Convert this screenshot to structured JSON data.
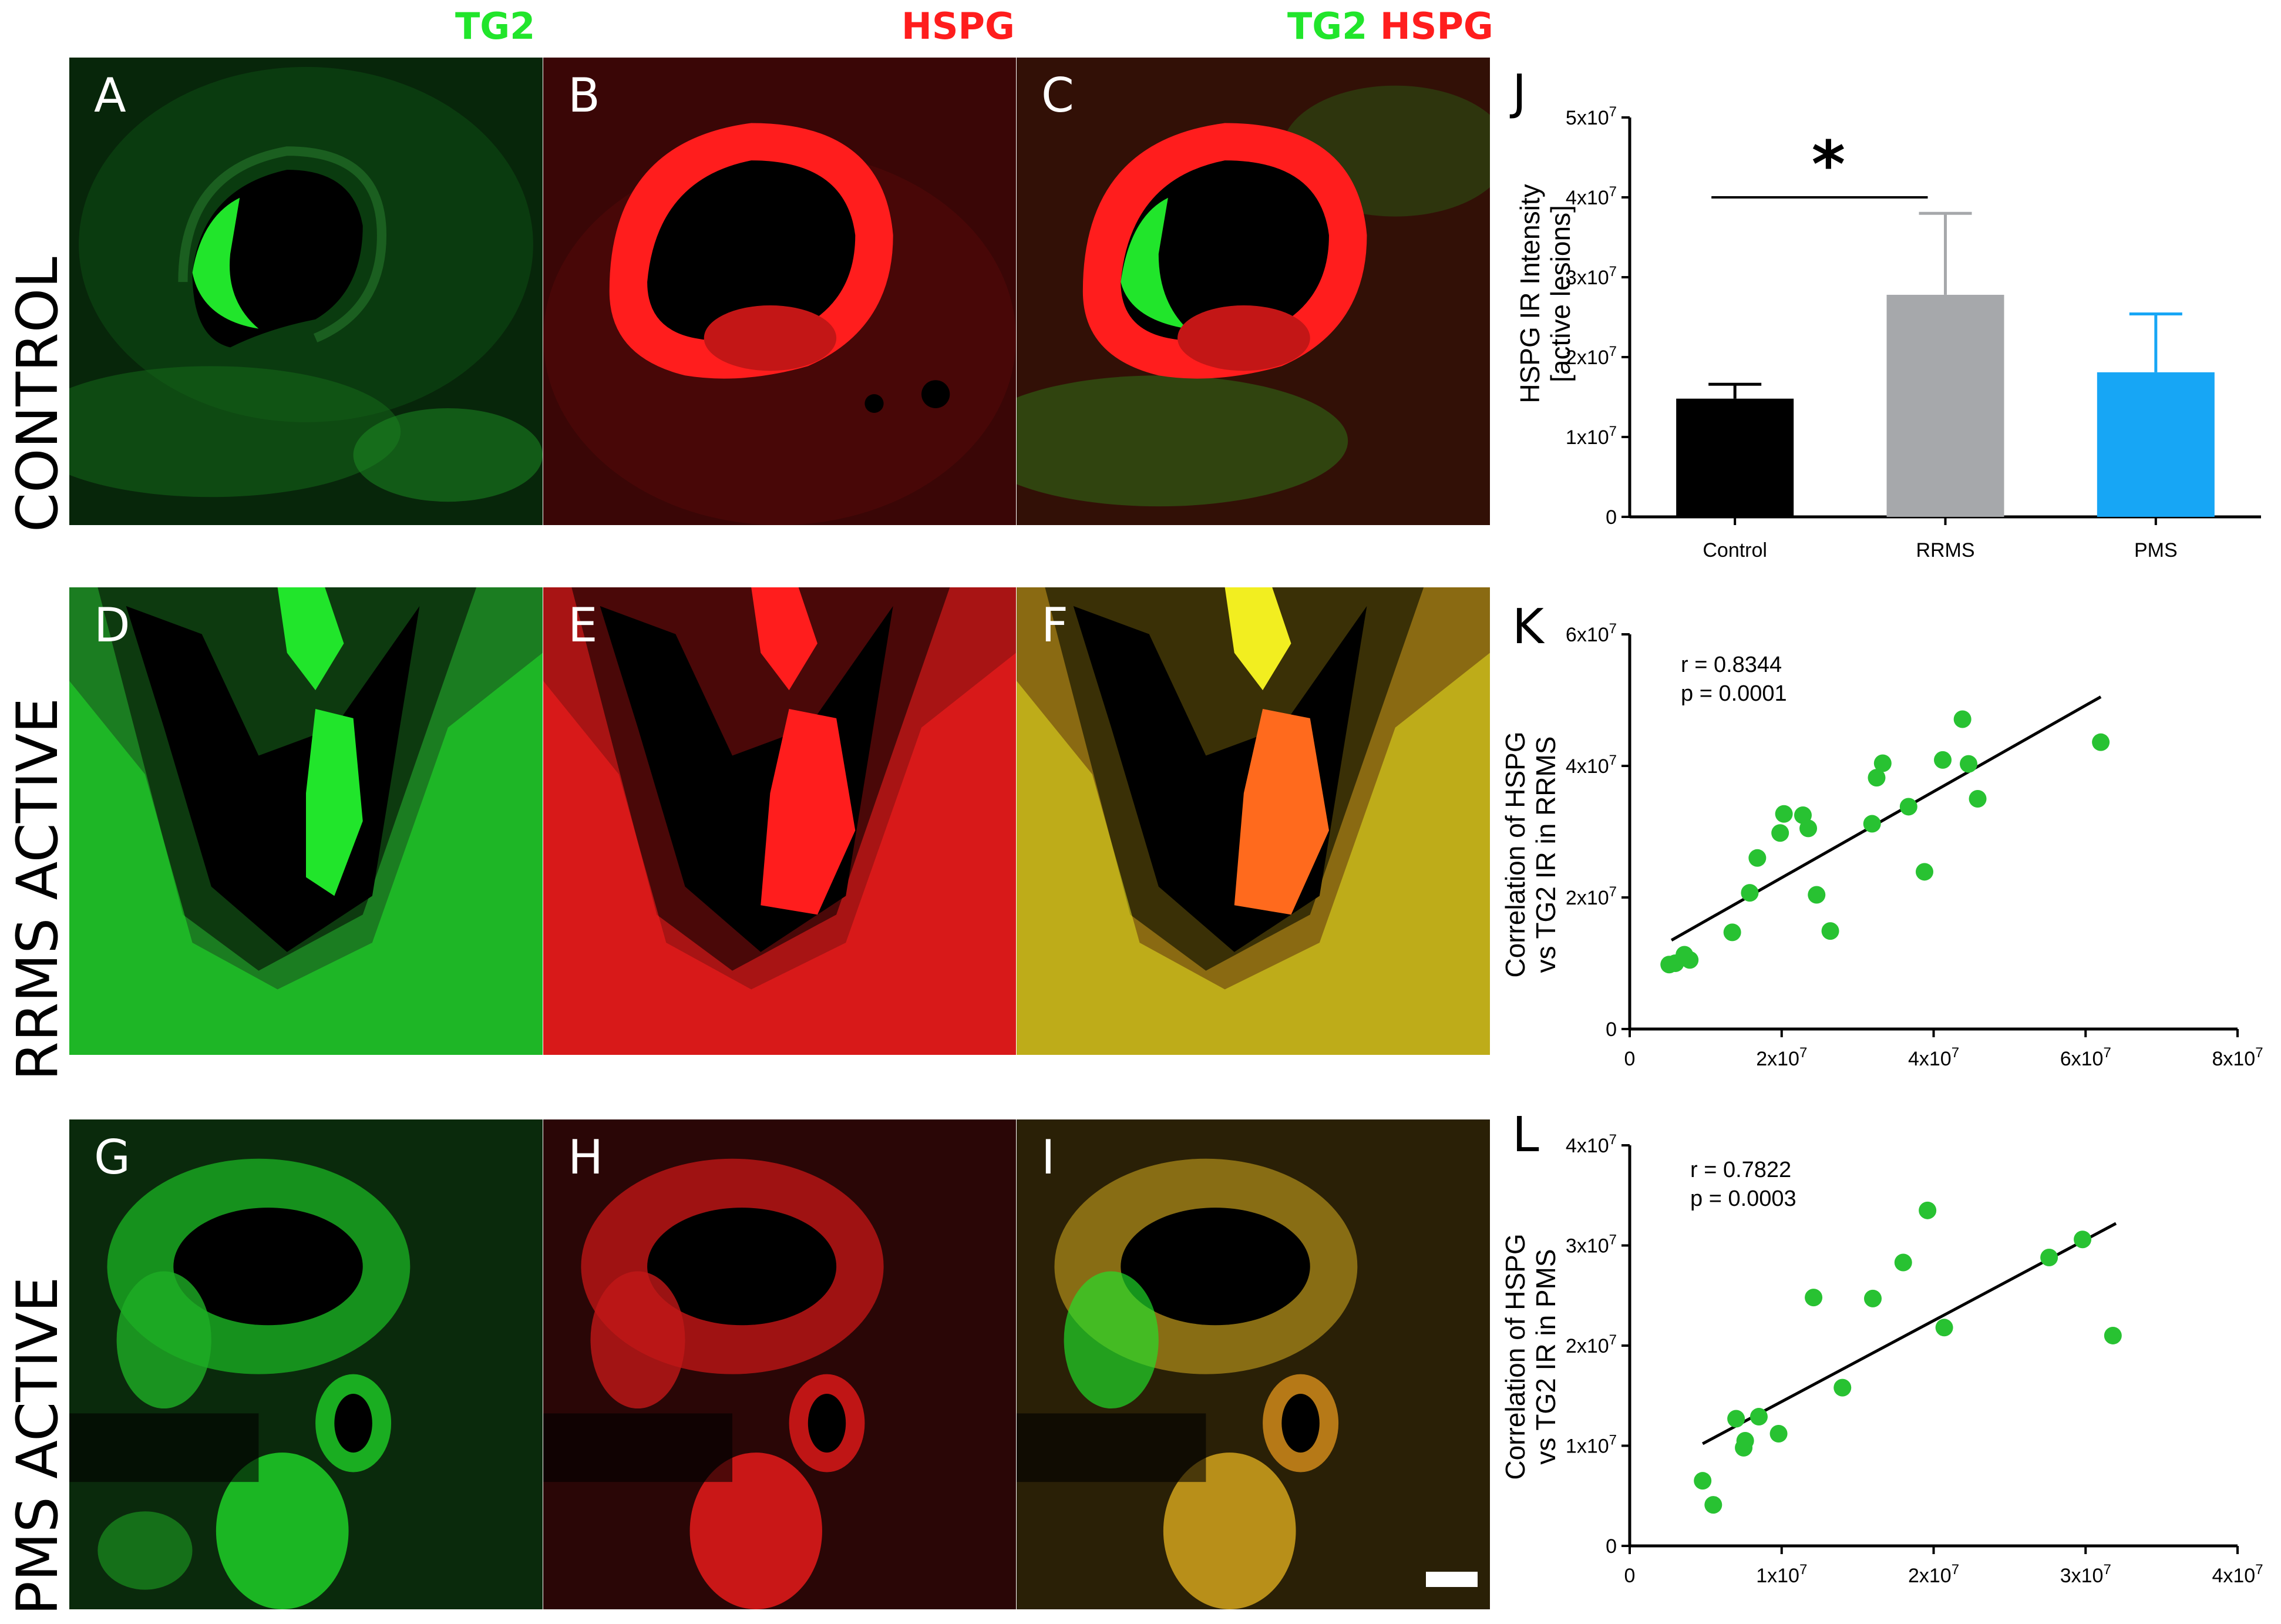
{
  "column_titles": {
    "a": {
      "parts": [
        {
          "text": "TG2",
          "color": "#21e52b"
        }
      ]
    },
    "b": {
      "parts": [
        {
          "text": "HSPG",
          "color": "#ff1d1d"
        }
      ]
    },
    "c": {
      "parts": [
        {
          "text": "TG2",
          "color": "#21e52b"
        },
        {
          "text": "HSPG",
          "color": "#ff1d1d"
        }
      ]
    }
  },
  "row_titles": [
    "CONTROL",
    "RRMS ACTIVE",
    "PMS ACTIVE"
  ],
  "panels": [
    {
      "letter": "A",
      "channel": "green"
    },
    {
      "letter": "B",
      "channel": "red"
    },
    {
      "letter": "C",
      "channel": "merge"
    },
    {
      "letter": "D",
      "channel": "green"
    },
    {
      "letter": "E",
      "channel": "red"
    },
    {
      "letter": "F",
      "channel": "merge"
    },
    {
      "letter": "G",
      "channel": "green"
    },
    {
      "letter": "H",
      "channel": "red"
    },
    {
      "letter": "I",
      "channel": "merge"
    }
  ],
  "colors": {
    "green": "#21e52b",
    "red": "#ff1d1d",
    "yellow": "#f2ee20",
    "control_bar": "#000000",
    "rrms_bar": "#a6a8ab",
    "pms_bar": "#17a6f5",
    "scatter_point": "#28c232"
  },
  "charts": {
    "J": {
      "letter": "J",
      "ylabel_line1": "HSPG IR Intensity",
      "ylabel_line2": "[active lesions]",
      "significance": "*"
    },
    "K": {
      "letter": "K",
      "ylabel_line1": "Correlation of HSPG",
      "ylabel_line2": "vs TG2 IR in RRMS",
      "r_text": "r = 0.8344",
      "p_text": "p = 0.0001"
    },
    "L": {
      "letter": "L",
      "ylabel_line1": "Correlation of HSPG",
      "ylabel_line2": "vs TG2 IR in PMS",
      "r_text": "r = 0.7822",
      "p_text": "p = 0.0003"
    }
  },
  "chart_data": [
    {
      "panel": "J",
      "type": "bar",
      "categories": [
        "Control",
        "RRMS",
        "PMS"
      ],
      "values": [
        14800000,
        27800000,
        18100000
      ],
      "errors": [
        1800000,
        10200000,
        7300000
      ],
      "bar_colors": [
        "#000000",
        "#a6a8ab",
        "#17a6f5"
      ],
      "ylim": [
        0,
        50000000
      ],
      "yticks": [
        0,
        10000000,
        20000000,
        30000000,
        40000000,
        50000000
      ],
      "ytick_labels": [
        {
          "base": "0",
          "exp": ""
        },
        {
          "base": "1x10",
          "exp": "7"
        },
        {
          "base": "2x10",
          "exp": "7"
        },
        {
          "base": "3x10",
          "exp": "7"
        },
        {
          "base": "4x10",
          "exp": "7"
        },
        {
          "base": "5x10",
          "exp": "7"
        }
      ],
      "significance": {
        "from": "Control",
        "to": "RRMS",
        "y": 40000000,
        "label": "*"
      }
    },
    {
      "panel": "K",
      "type": "scatter",
      "xlim": [
        0,
        80000000
      ],
      "ylim": [
        0,
        60000000
      ],
      "xticks": [
        0,
        20000000,
        40000000,
        60000000,
        80000000
      ],
      "xtick_labels": [
        {
          "base": "0",
          "exp": ""
        },
        {
          "base": "2x10",
          "exp": "7"
        },
        {
          "base": "4x10",
          "exp": "7"
        },
        {
          "base": "6x10",
          "exp": "7"
        },
        {
          "base": "8x10",
          "exp": "7"
        }
      ],
      "yticks": [
        0,
        20000000,
        40000000,
        60000000
      ],
      "ytick_labels": [
        {
          "base": "0",
          "exp": ""
        },
        {
          "base": "2x10",
          "exp": "7"
        },
        {
          "base": "4x10",
          "exp": "7"
        },
        {
          "base": "6x10",
          "exp": "7"
        }
      ],
      "points": [
        [
          5200000,
          9800000
        ],
        [
          6000000,
          10000000
        ],
        [
          7200000,
          11300000
        ],
        [
          7900000,
          10500000
        ],
        [
          13500000,
          14700000
        ],
        [
          15800000,
          20700000
        ],
        [
          16800000,
          26000000
        ],
        [
          19800000,
          29800000
        ],
        [
          20300000,
          32700000
        ],
        [
          22800000,
          32500000
        ],
        [
          23500000,
          30500000
        ],
        [
          24600000,
          20400000
        ],
        [
          26400000,
          14900000
        ],
        [
          31900000,
          31200000
        ],
        [
          32500000,
          38200000
        ],
        [
          33300000,
          40400000
        ],
        [
          36700000,
          33800000
        ],
        [
          38800000,
          23900000
        ],
        [
          41200000,
          40900000
        ],
        [
          43800000,
          47100000
        ],
        [
          44600000,
          40300000
        ],
        [
          45800000,
          35000000
        ],
        [
          62000000,
          43600000
        ]
      ],
      "fit": {
        "x": [
          5500000,
          62000000
        ],
        "y": [
          13500000,
          50500000
        ]
      },
      "r": 0.8344,
      "p": 0.0001
    },
    {
      "panel": "L",
      "type": "scatter",
      "xlim": [
        0,
        40000000
      ],
      "ylim": [
        0,
        40000000
      ],
      "xticks": [
        0,
        10000000,
        20000000,
        30000000,
        40000000
      ],
      "xtick_labels": [
        {
          "base": "0",
          "exp": ""
        },
        {
          "base": "1x10",
          "exp": "7"
        },
        {
          "base": "2x10",
          "exp": "7"
        },
        {
          "base": "3x10",
          "exp": "7"
        },
        {
          "base": "4x10",
          "exp": "7"
        }
      ],
      "yticks": [
        0,
        10000000,
        20000000,
        30000000,
        40000000
      ],
      "ytick_labels": [
        {
          "base": "0",
          "exp": ""
        },
        {
          "base": "1x10",
          "exp": "7"
        },
        {
          "base": "2x10",
          "exp": "7"
        },
        {
          "base": "3x10",
          "exp": "7"
        },
        {
          "base": "4x10",
          "exp": "7"
        }
      ],
      "points": [
        [
          4800000,
          6500000
        ],
        [
          5500000,
          4100000
        ],
        [
          7000000,
          12700000
        ],
        [
          7500000,
          9800000
        ],
        [
          7600000,
          10500000
        ],
        [
          8500000,
          12900000
        ],
        [
          9800000,
          11200000
        ],
        [
          12100000,
          24800000
        ],
        [
          14000000,
          15800000
        ],
        [
          16000000,
          24700000
        ],
        [
          18000000,
          28300000
        ],
        [
          19600000,
          33500000
        ],
        [
          20700000,
          21800000
        ],
        [
          27600000,
          28800000
        ],
        [
          29800000,
          30600000
        ],
        [
          31800000,
          21000000
        ]
      ],
      "fit": {
        "x": [
          4800000,
          32000000
        ],
        "y": [
          10200000,
          32200000
        ]
      },
      "r": 0.7822,
      "p": 0.0003
    }
  ]
}
